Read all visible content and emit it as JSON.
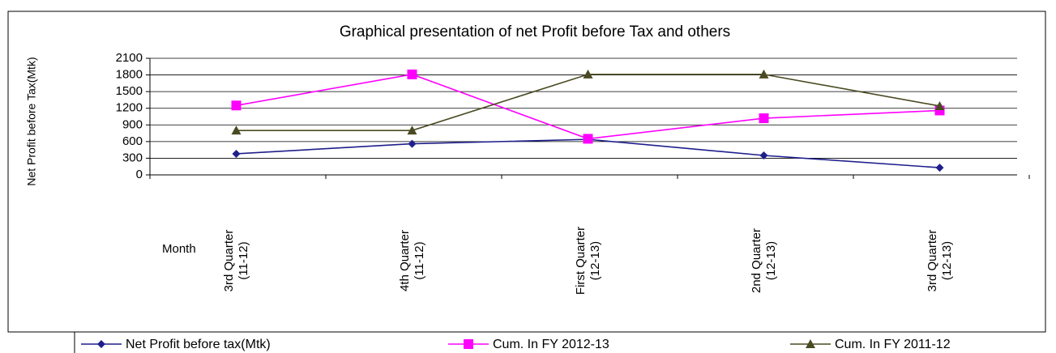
{
  "chart_data": {
    "type": "line",
    "title": "Graphical presentation of net Profit before Tax and others",
    "y_label": "Net Profit before Tax(Mtk)",
    "x_label": "Month",
    "categories": [
      "3rd Quarter\n(11-12)",
      "4th Quarter\n(11-12)",
      "First Quarter\n(12-13)",
      "2nd Quarter\n(12-13)",
      "3rd Quarter\n(12-13)"
    ],
    "series": [
      {
        "name": "Net Profit before tax(Mtk)",
        "color": "#1f1f8c",
        "marker": "diamond",
        "values": [
          380,
          560,
          640,
          350,
          130
        ]
      },
      {
        "name": "Cum. In FY 2012-13",
        "color": "#ff00ff",
        "marker": "square",
        "values": [
          1250,
          1810,
          650,
          1020,
          1160
        ]
      },
      {
        "name": "Cum. In FY 2011-12",
        "color": "#4a4a22",
        "marker": "triangle",
        "values": [
          800,
          800,
          1810,
          1810,
          1240
        ]
      }
    ],
    "ylim": [
      0,
      2100
    ],
    "yticks": [
      0,
      300,
      600,
      900,
      1200,
      1500,
      1800,
      2100
    ],
    "grid": true
  }
}
